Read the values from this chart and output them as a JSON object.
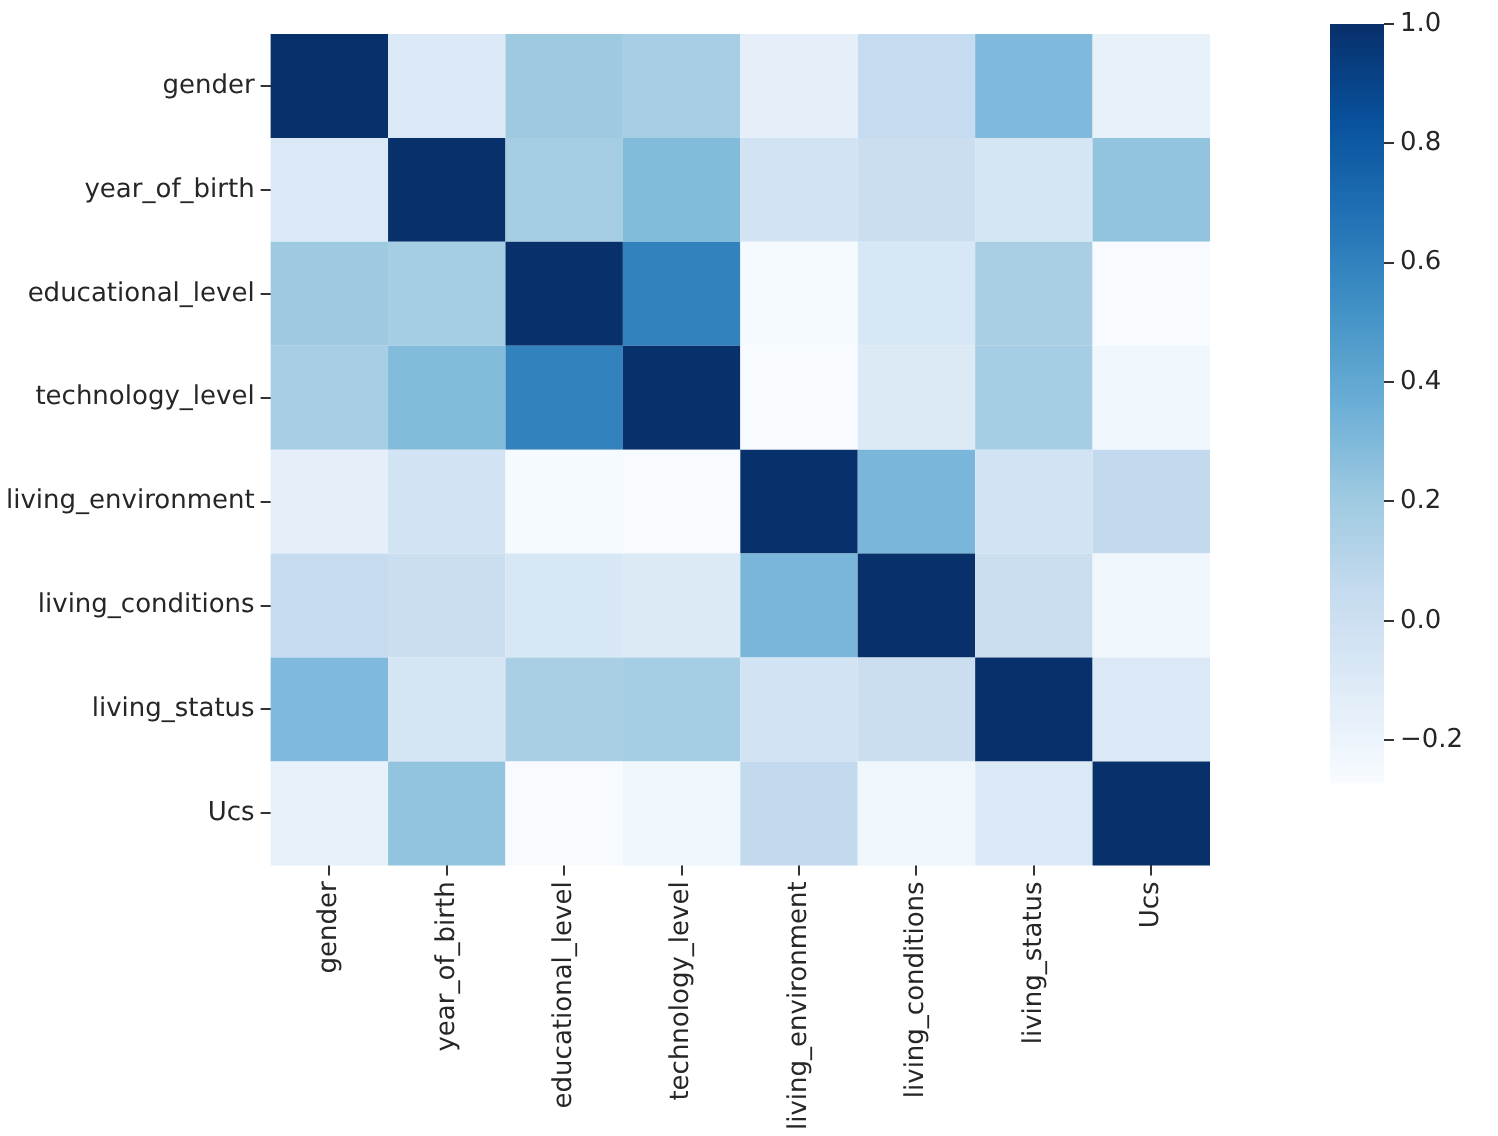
{
  "chart_data": {
    "type": "heatmap",
    "categories": [
      "gender",
      "year_of_birth",
      "educational_level",
      "technology_level",
      "living_environment",
      "living_conditions",
      "living_status",
      "Ucs"
    ],
    "y_categories": [
      "gender",
      "year_of_birth",
      "educational_level",
      "technology_level",
      "living_environment",
      "living_conditions",
      "living_status",
      "Ucs"
    ],
    "cells": [
      [
        1,
        -0.09,
        0.21,
        0.17,
        -0.15,
        0.05,
        0.3,
        -0.17
      ],
      [
        -0.09,
        1,
        0.18,
        0.29,
        -0.03,
        0.02,
        -0.05,
        0.24
      ],
      [
        0.21,
        0.18,
        1,
        0.6,
        -0.26,
        -0.07,
        0.16,
        -0.27
      ],
      [
        0.17,
        0.29,
        0.6,
        1,
        -0.27,
        -0.1,
        0.18,
        -0.22
      ],
      [
        -0.15,
        -0.03,
        -0.26,
        -0.27,
        1,
        0.32,
        -0.03,
        0.06
      ],
      [
        0.05,
        0.02,
        -0.07,
        -0.1,
        0.32,
        1,
        0.02,
        -0.22
      ],
      [
        0.3,
        -0.05,
        0.16,
        0.18,
        -0.03,
        0.02,
        1,
        -0.09
      ],
      [
        -0.17,
        0.24,
        -0.27,
        -0.22,
        0.06,
        -0.22,
        -0.09,
        1
      ]
    ],
    "clim": [
      -0.27,
      1
    ],
    "cticks": [
      {
        "value": -0.2,
        "label": "−0.2"
      },
      {
        "value": 0,
        "label": "0.0"
      },
      {
        "value": 0.2,
        "label": "0.2"
      },
      {
        "value": 0.4,
        "label": "0.4"
      },
      {
        "value": 0.6,
        "label": "0.6"
      },
      {
        "value": 0.8,
        "label": "0.8"
      },
      {
        "value": 1,
        "label": "1.0"
      }
    ]
  }
}
